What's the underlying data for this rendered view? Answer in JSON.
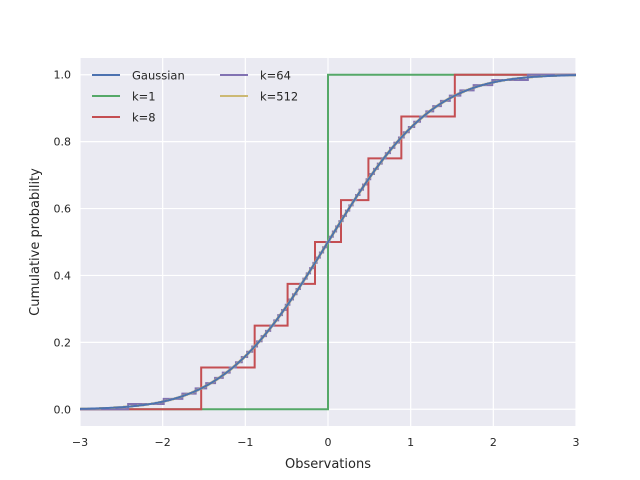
{
  "chart_data": {
    "type": "line",
    "title": "",
    "xlabel": "Observations",
    "ylabel": "Cumulative probability",
    "xlim": [
      -3,
      3
    ],
    "ylim": [
      -0.05,
      1.05
    ],
    "xticks": [
      -3,
      -2,
      -1,
      0,
      1,
      2,
      3
    ],
    "xtick_labels": [
      "−3",
      "−2",
      "−1",
      "0",
      "1",
      "2",
      "3"
    ],
    "yticks": [
      0.0,
      0.2,
      0.4,
      0.6,
      0.8,
      1.0
    ],
    "ytick_labels": [
      "0.0",
      "0.2",
      "0.4",
      "0.6",
      "0.8",
      "1.0"
    ],
    "grid": true,
    "legend_position": "top-left",
    "legend_columns": 2,
    "series": [
      {
        "name": "Gaussian",
        "color": "#4c72b0",
        "kind": "normal-cdf"
      },
      {
        "name": "k=1",
        "color": "#55a868",
        "kind": "steps",
        "k": 1
      },
      {
        "name": "k=8",
        "color": "#c44e52",
        "kind": "steps",
        "k": 8
      },
      {
        "name": "k=64",
        "color": "#8172b2",
        "kind": "steps",
        "k": 64
      },
      {
        "name": "k=512",
        "color": "#ccb974",
        "kind": "steps",
        "k": 512
      }
    ]
  }
}
